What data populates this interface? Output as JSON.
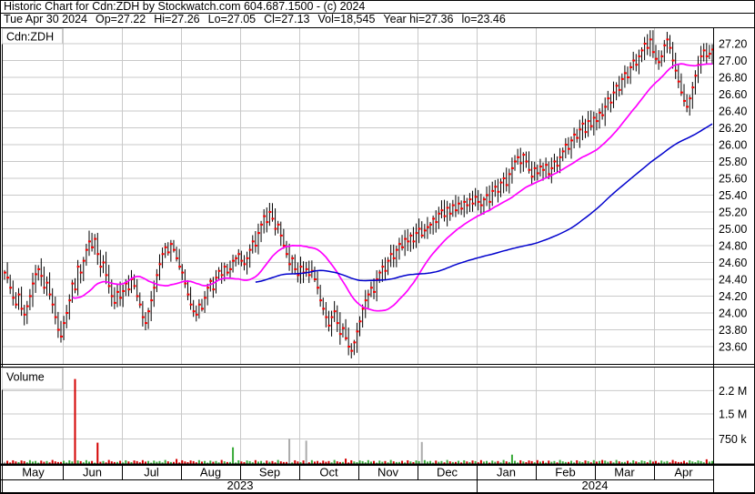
{
  "header": {
    "title": "Historic Chart for Cdn:ZDH by Stockwatch.com 604.687.1500 - (c) 2024",
    "quote": {
      "date": "Tue Apr 30 2024",
      "fields": [
        "Op=27.22",
        "Hi=27.26",
        "Lo=27.05",
        "Cl=27.13",
        "Vol=18,545",
        "Year hi=27.36",
        "lo=23.46"
      ]
    }
  },
  "chart": {
    "symbol_label": "Cdn:ZDH",
    "volume_label": "Volume",
    "colors": {
      "grid": "#c9c9c9",
      "border": "#000000",
      "bar": "#000000",
      "close_tick": "#ff0000",
      "ma_short": "#ff00ff",
      "ma_long": "#0000cd",
      "vol_up": "#3aaa3a",
      "vol_down": "#d40000",
      "vol_neutral": "#ababab",
      "text": "#000000"
    }
  },
  "chart_data": {
    "type": "bar",
    "subtype": "ohlc-hilo-bars-with-close-tick-plus-volume",
    "title": "Historic Chart for Cdn:ZDH by Stockwatch.com 604.687.1500 - (c) 2024",
    "symbol": "Cdn:ZDH",
    "date_range": "May 2023 - Apr 2024",
    "last_quote": {
      "date": "Tue Apr 30 2024",
      "open": 27.22,
      "high": 27.26,
      "low": 27.05,
      "close": 27.13,
      "volume": 18545
    },
    "year_high": 27.36,
    "year_low": 23.46,
    "ylim": [
      23.46,
      27.38
    ],
    "y_ticks": [
      "27.20",
      "27.00",
      "26.80",
      "26.60",
      "26.40",
      "26.20",
      "26.00",
      "25.80",
      "25.60",
      "25.40",
      "25.20",
      "25.00",
      "24.80",
      "24.60",
      "24.40",
      "24.20",
      "24.00",
      "23.80",
      "23.60"
    ],
    "volume_ticks": [
      {
        "label": "2.2 M",
        "value_k": 2200
      },
      {
        "label": "1.5 M",
        "value_k": 1500
      },
      {
        "label": "750 k",
        "value_k": 750
      }
    ],
    "x_axis": {
      "months": [
        "May",
        "Jun",
        "Jul",
        "Aug",
        "Sep",
        "Oct",
        "Nov",
        "Dec",
        "Jan",
        "Feb",
        "Mar",
        "Apr"
      ],
      "years": [
        {
          "label": "2023",
          "from_month": 0,
          "to_month": 7
        },
        {
          "label": "2024",
          "from_month": 8,
          "to_month": 11
        }
      ]
    },
    "ma_windows": {
      "short": 25,
      "long": 90
    },
    "closes": [
      24.48,
      24.42,
      24.3,
      24.18,
      24.1,
      24.22,
      24.05,
      23.98,
      24.08,
      24.2,
      24.35,
      24.46,
      24.52,
      24.44,
      24.3,
      24.36,
      24.22,
      24.1,
      23.95,
      23.8,
      23.72,
      23.88,
      24.0,
      24.15,
      24.35,
      24.28,
      24.55,
      24.48,
      24.62,
      24.75,
      24.85,
      24.78,
      24.88,
      24.7,
      24.55,
      24.6,
      24.45,
      24.32,
      24.2,
      24.12,
      24.25,
      24.18,
      24.26,
      24.35,
      24.28,
      24.4,
      24.32,
      24.2,
      24.1,
      23.95,
      23.88,
      24.02,
      24.15,
      24.3,
      24.45,
      24.58,
      24.7,
      24.78,
      24.72,
      24.82,
      24.75,
      24.65,
      24.55,
      24.48,
      24.35,
      24.22,
      24.1,
      24.02,
      23.98,
      24.1,
      24.05,
      24.18,
      24.3,
      24.38,
      24.28,
      24.42,
      24.5,
      24.45,
      24.55,
      24.48,
      24.52,
      24.62,
      24.65,
      24.7,
      24.62,
      24.58,
      24.65,
      24.75,
      24.85,
      24.8,
      24.95,
      25.05,
      25.15,
      25.08,
      25.2,
      25.12,
      25.0,
      25.05,
      24.92,
      24.8,
      24.7,
      24.58,
      24.65,
      24.52,
      24.45,
      24.55,
      24.48,
      24.52,
      24.45,
      24.5,
      24.4,
      24.3,
      24.15,
      24.05,
      23.95,
      23.85,
      23.95,
      24.02,
      23.88,
      23.75,
      23.82,
      23.7,
      23.6,
      23.55,
      23.65,
      23.78,
      23.9,
      24.05,
      24.15,
      24.22,
      24.3,
      24.25,
      24.4,
      24.48,
      24.55,
      24.5,
      24.62,
      24.7,
      24.65,
      24.75,
      24.82,
      24.78,
      24.88,
      24.85,
      24.92,
      24.85,
      24.95,
      25.0,
      24.92,
      24.98,
      25.02,
      25.05,
      25.12,
      25.08,
      25.18,
      25.22,
      25.15,
      25.25,
      25.18,
      25.28,
      25.22,
      25.3,
      25.24,
      25.32,
      25.28,
      25.35,
      25.3,
      25.38,
      25.32,
      25.28,
      25.35,
      25.4,
      25.32,
      25.45,
      25.5,
      25.44,
      25.55,
      25.6,
      25.52,
      25.65,
      25.72,
      25.8,
      25.85,
      25.78,
      25.88,
      25.8,
      25.7,
      25.62,
      25.72,
      25.66,
      25.74,
      25.7,
      25.76,
      25.65,
      25.72,
      25.8,
      25.75,
      25.85,
      25.92,
      26.0,
      25.95,
      26.05,
      26.12,
      26.08,
      26.18,
      26.25,
      26.15,
      26.28,
      26.22,
      26.32,
      26.28,
      26.38,
      26.35,
      26.45,
      26.55,
      26.5,
      26.62,
      26.7,
      26.65,
      26.78,
      26.85,
      26.8,
      26.92,
      27.0,
      26.95,
      27.05,
      27.12,
      27.2,
      27.15,
      27.25,
      27.1,
      27.02,
      26.98,
      27.05,
      27.18,
      27.25,
      27.15,
      27.0,
      26.88,
      26.75,
      26.62,
      26.52,
      26.45,
      26.55,
      26.68,
      26.82,
      26.95,
      27.05,
      27.12,
      27.05,
      27.08,
      27.13
    ],
    "volume_base_pattern_k": [
      60,
      95,
      45,
      110,
      75,
      55,
      105,
      85,
      50,
      115,
      70,
      90,
      40,
      100,
      65,
      88,
      48,
      120,
      78,
      58
    ],
    "volume_spikes_k": {
      "25": 2550,
      "33": 640,
      "61": 150,
      "81": 500,
      "101": 760,
      "107": 700,
      "121": 160,
      "148": 660,
      "180": 280,
      "212": 120,
      "249": 140
    },
    "volume_gray_indices": [
      101,
      107,
      148
    ]
  }
}
